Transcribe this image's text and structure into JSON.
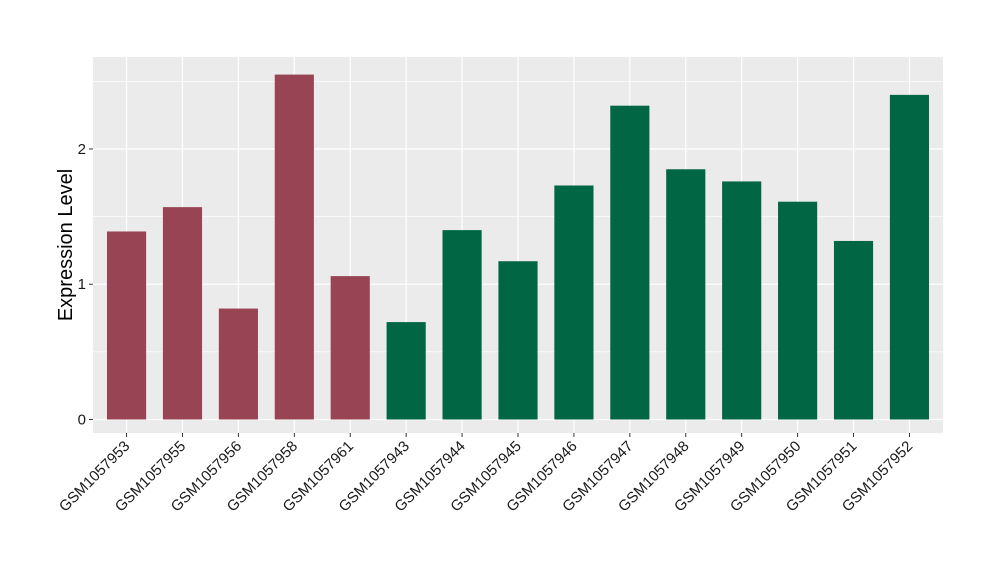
{
  "chart_data": {
    "type": "bar",
    "title": "",
    "xlabel": "",
    "ylabel": "Expression Level",
    "ylim": [
      -0.1,
      2.68
    ],
    "yticks": [
      0,
      1,
      2
    ],
    "grid": true,
    "legend": "none",
    "categories": [
      "GSM1057953",
      "GSM1057955",
      "GSM1057956",
      "GSM1057958",
      "GSM1057961",
      "GSM1057943",
      "GSM1057944",
      "GSM1057945",
      "GSM1057946",
      "GSM1057947",
      "GSM1057948",
      "GSM1057949",
      "GSM1057950",
      "GSM1057951",
      "GSM1057952"
    ],
    "values": [
      1.39,
      1.57,
      0.82,
      2.55,
      1.06,
      0.72,
      1.4,
      1.17,
      1.73,
      2.32,
      1.85,
      1.76,
      1.61,
      1.32,
      2.4
    ],
    "groups": [
      "a",
      "a",
      "a",
      "a",
      "a",
      "b",
      "b",
      "b",
      "b",
      "b",
      "b",
      "b",
      "b",
      "b",
      "b"
    ],
    "group_colors": {
      "a": "#994455",
      "b": "#006644"
    },
    "panel_background": "#ebebeb",
    "grid_color": "#ffffff"
  }
}
